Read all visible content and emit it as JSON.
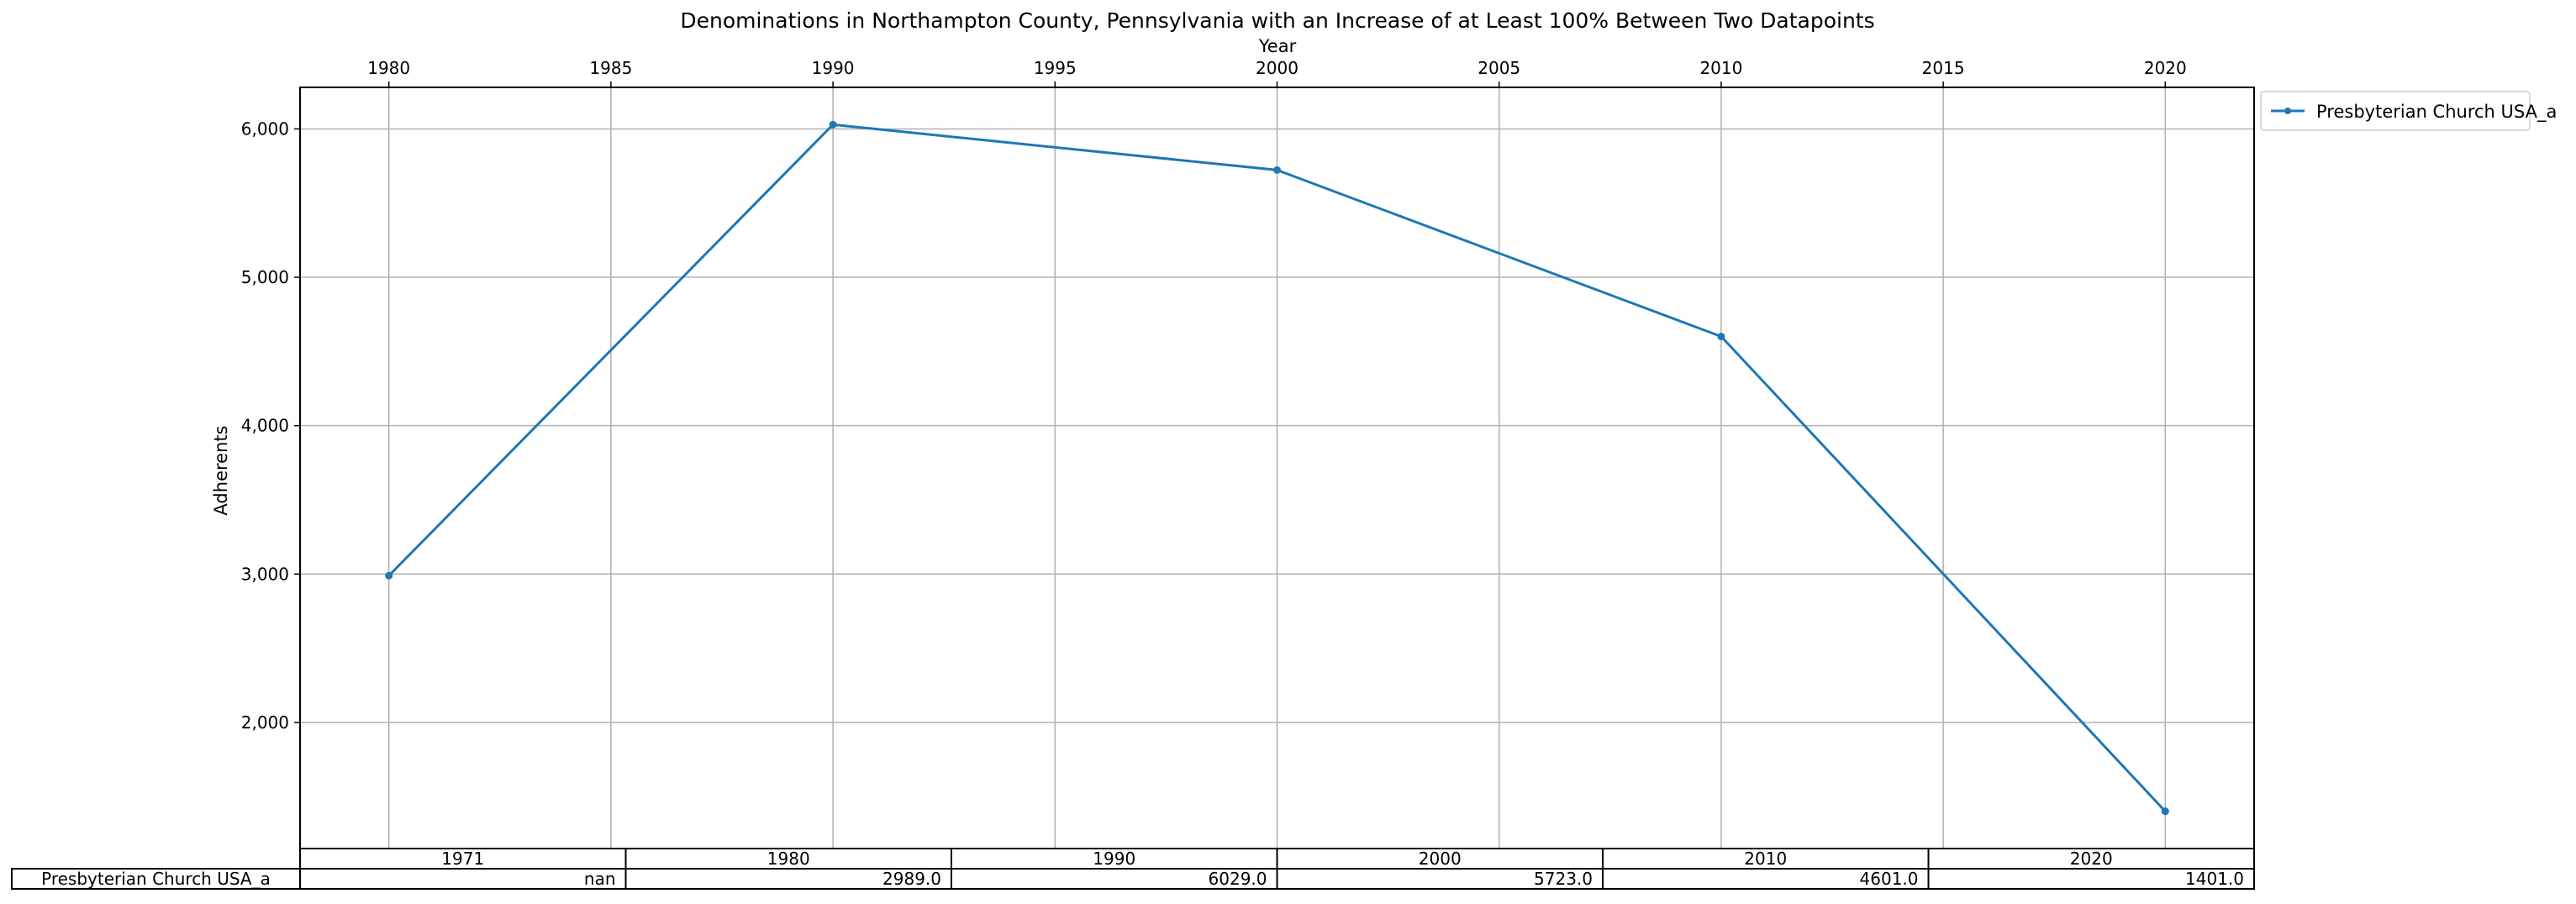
{
  "chart_data": {
    "type": "line",
    "title": "Denominations in Northampton County, Pennsylvania with an Increase of at Least 100% Between Two Datapoints",
    "xlabel": "Year",
    "ylabel": "Adherents",
    "xlim": [
      1978,
      2022
    ],
    "ylim": [
      1150,
      6280
    ],
    "x_ticks": [
      "1980",
      "1985",
      "1990",
      "1995",
      "2000",
      "2005",
      "2010",
      "2015",
      "2020"
    ],
    "y_ticks": [
      "2,000",
      "3,000",
      "4,000",
      "5,000",
      "6,000"
    ],
    "grid": true,
    "legend_position": "outside-top-right",
    "series": [
      {
        "name": "Presbyterian Church USA_a",
        "color": "#1f77b4",
        "x": [
          1980,
          1990,
          2000,
          2010,
          2020
        ],
        "y": [
          2989,
          6029,
          5723,
          4601,
          1401
        ]
      }
    ],
    "table": {
      "columns": [
        "1971",
        "1980",
        "1990",
        "2000",
        "2010",
        "2020"
      ],
      "rows": [
        {
          "label": "Presbyterian Church USA_a",
          "values": [
            "nan",
            "2989.0",
            "6029.0",
            "5723.0",
            "4601.0",
            "1401.0"
          ]
        }
      ]
    }
  }
}
